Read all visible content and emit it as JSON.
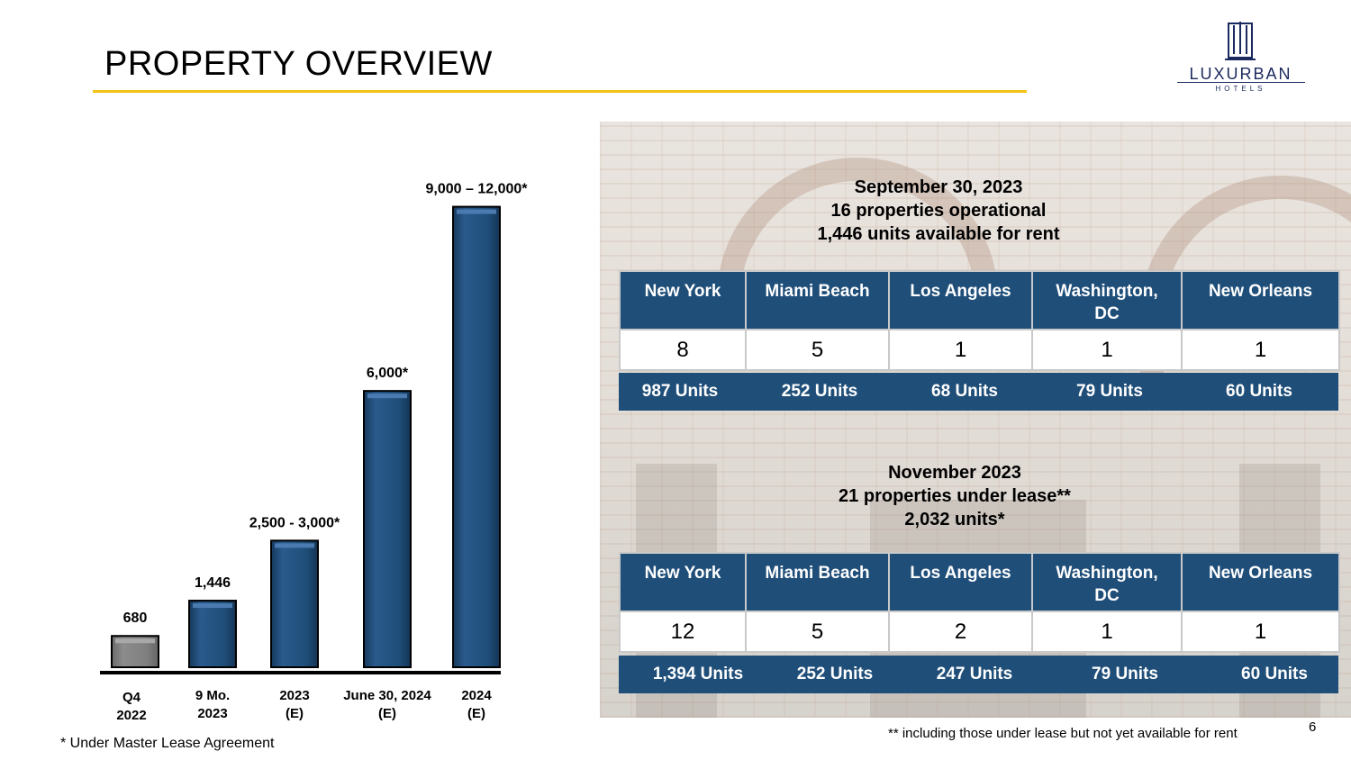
{
  "page": {
    "title": "PROPERTY OVERVIEW",
    "page_number": "6",
    "footnote_left": "* Under Master Lease Agreement",
    "footnote_right": "** including those under lease but not yet available for rent"
  },
  "logo": {
    "brand": "LUXURBAN",
    "sub": "HOTELS"
  },
  "colors": {
    "accent": "#f2c417",
    "bar": "#1f4e79",
    "bar_gray": "#7f7f7f",
    "navy": "#1b2a5e"
  },
  "chart_data": {
    "type": "bar",
    "title": "",
    "xlabel": "",
    "ylabel": "",
    "ylim": [
      0,
      10500
    ],
    "grid": false,
    "categories": [
      [
        "Q4",
        "2022"
      ],
      [
        "9 Mo.",
        "2023"
      ],
      [
        "2023",
        "(E)"
      ],
      [
        "June 30, 2024",
        "(E)"
      ],
      [
        "2024",
        "(E)"
      ]
    ],
    "values": [
      680,
      1446,
      2750,
      6000,
      10000
    ],
    "data_labels": [
      "680",
      "1,446",
      "2,500 - 3,000*",
      "6,000*",
      "9,000 – 12,000*"
    ],
    "bar_colors": [
      "#7f7f7f",
      "#1f4e79",
      "#1f4e79",
      "#1f4e79",
      "#1f4e79"
    ]
  },
  "section1": {
    "heading": [
      "September 30, 2023",
      "16 properties operational",
      "1,446 units available for rent"
    ],
    "cities": [
      [
        "New York"
      ],
      [
        "Miami Beach"
      ],
      [
        "Los Angeles"
      ],
      [
        "Washington,",
        "DC"
      ],
      [
        "New Orleans"
      ]
    ],
    "counts": [
      "8",
      "5",
      "1",
      "1",
      "1"
    ],
    "units": [
      "987 Units",
      "252 Units",
      "68 Units",
      "79 Units",
      "60 Units"
    ]
  },
  "section2": {
    "heading": [
      "November 2023",
      "21 properties under lease**",
      "2,032 units*"
    ],
    "cities": [
      [
        "New York"
      ],
      [
        "Miami Beach"
      ],
      [
        "Los Angeles"
      ],
      [
        "Washington,",
        "DC"
      ],
      [
        "New Orleans"
      ]
    ],
    "counts": [
      "12",
      "5",
      "2",
      "1",
      "1"
    ],
    "units": [
      "1,394 Units",
      "252 Units",
      "247 Units",
      "79 Units",
      "60 Units"
    ]
  }
}
